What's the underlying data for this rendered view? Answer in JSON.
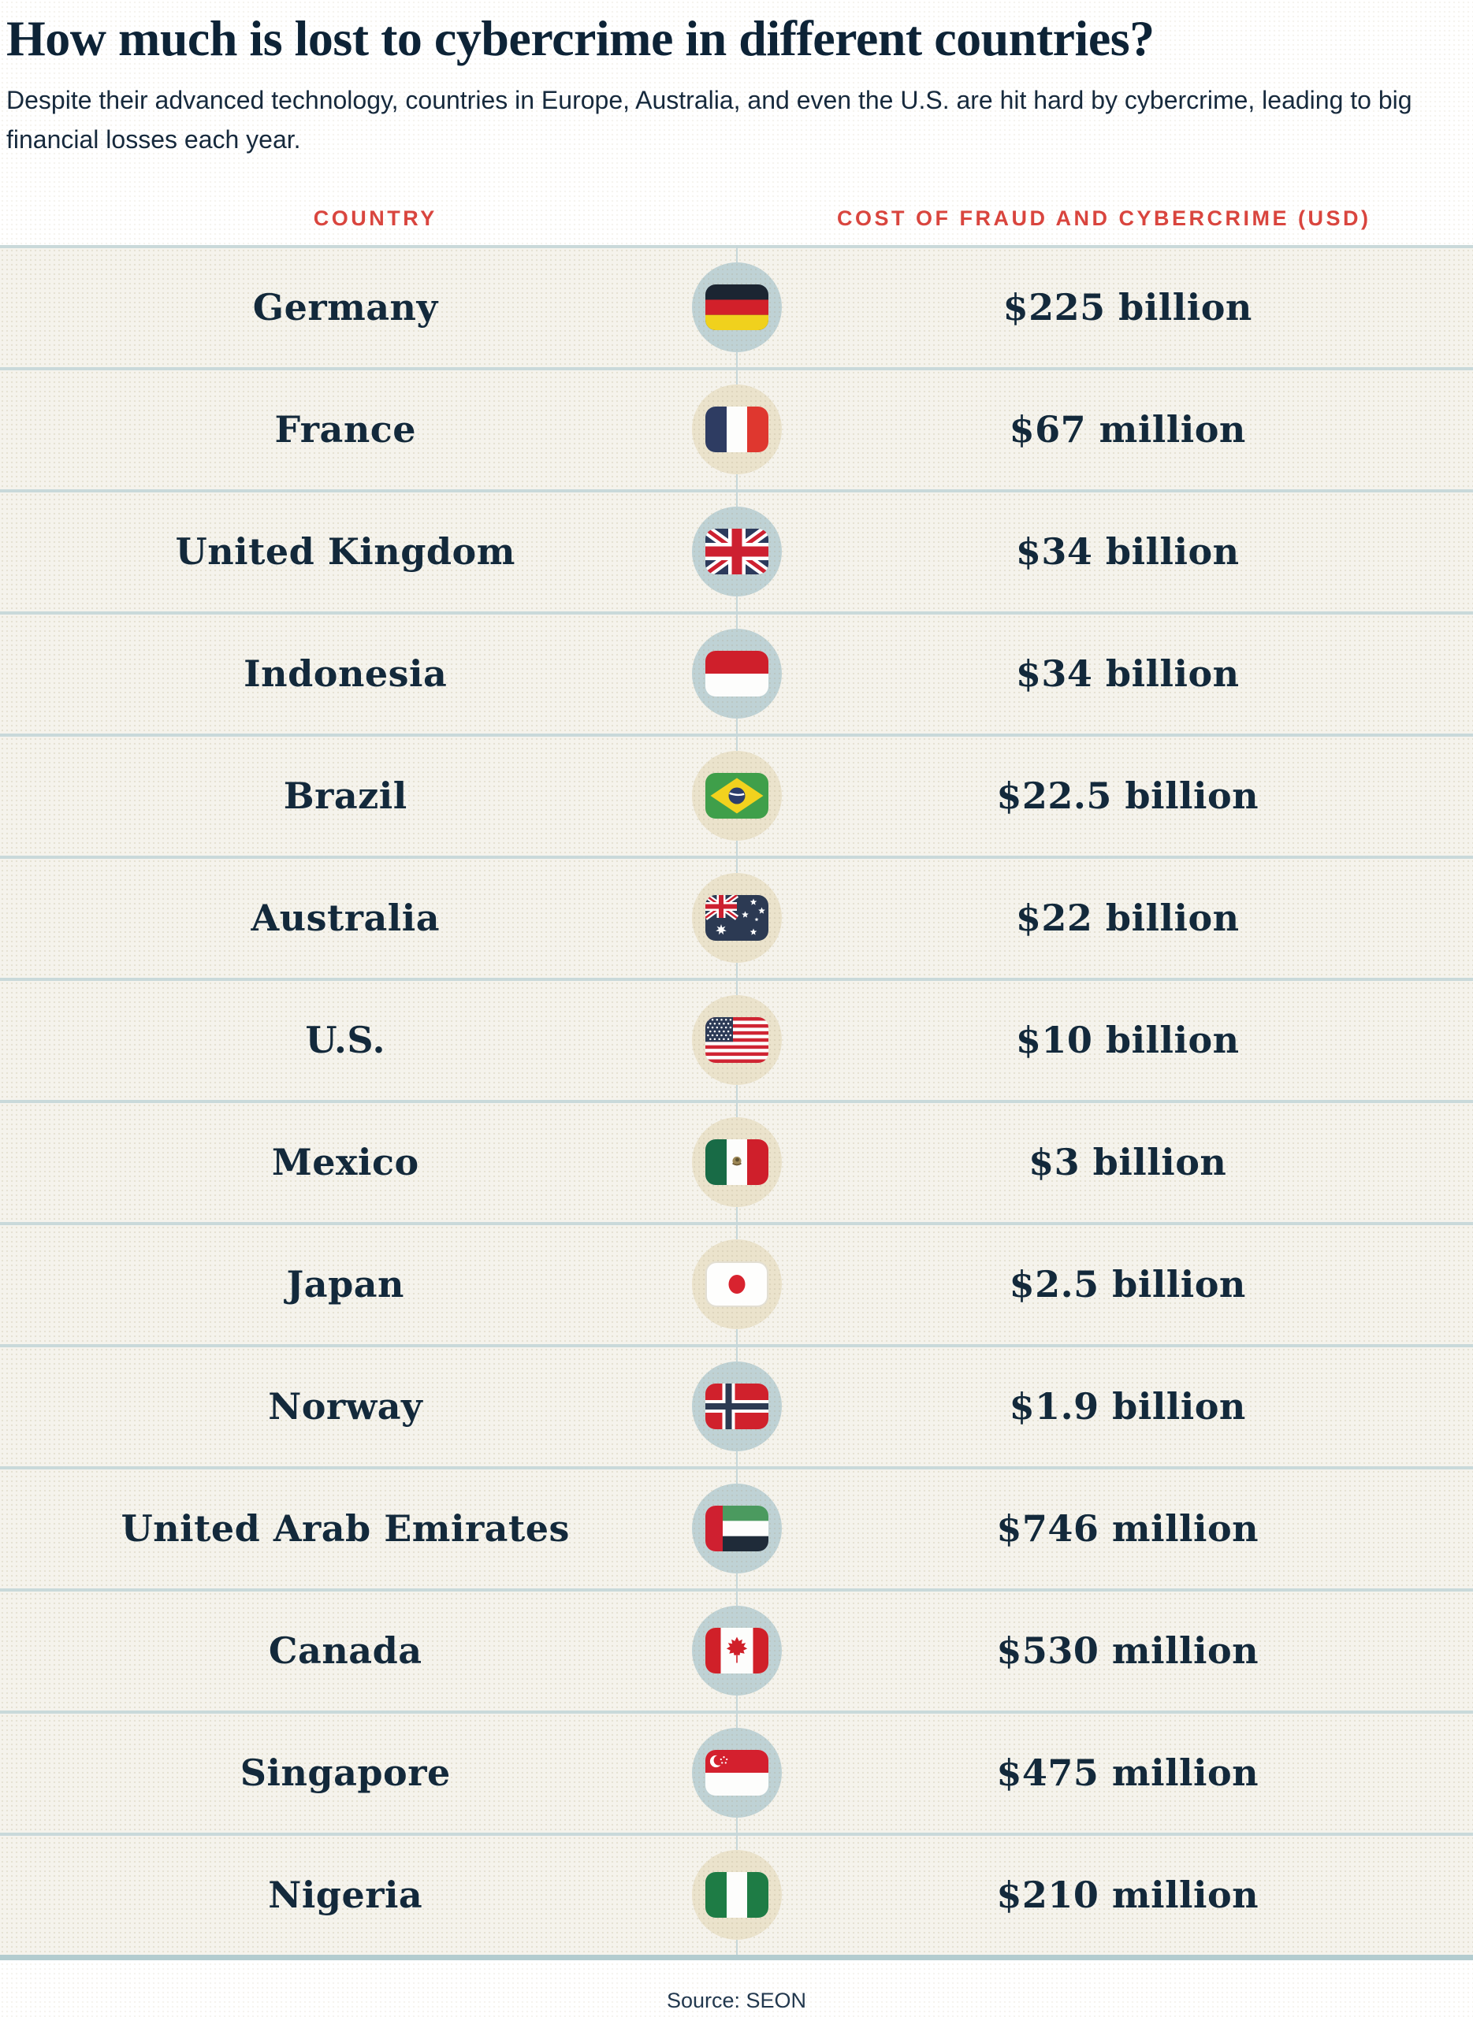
{
  "page": {
    "title": "How much is lost to cybercrime in different countries?",
    "subtitle": "Despite their advanced technology, countries in Europe, Australia, and even the U.S. are hit hard by cybercrime, leading to big financial losses each year.",
    "source": "Source: SEON"
  },
  "table": {
    "columns": {
      "country": "COUNTRY",
      "cost": "COST OF FRAUD AND CYBERCRIME (USD)"
    },
    "rows": [
      {
        "country": "Germany",
        "value": "$225 billion",
        "flag": "germany",
        "circle": "blue"
      },
      {
        "country": "France",
        "value": "$67 million",
        "flag": "france",
        "circle": "cream"
      },
      {
        "country": "United Kingdom",
        "value": "$34 billion",
        "flag": "uk",
        "circle": "blue"
      },
      {
        "country": "Indonesia",
        "value": "$34 billion",
        "flag": "indonesia",
        "circle": "blue"
      },
      {
        "country": "Brazil",
        "value": "$22.5 billion",
        "flag": "brazil",
        "circle": "cream"
      },
      {
        "country": "Australia",
        "value": "$22 billion",
        "flag": "australia",
        "circle": "cream"
      },
      {
        "country": "U.S.",
        "value": "$10 billion",
        "flag": "us",
        "circle": "cream"
      },
      {
        "country": "Mexico",
        "value": "$3 billion",
        "flag": "mexico",
        "circle": "cream"
      },
      {
        "country": "Japan",
        "value": "$2.5 billion",
        "flag": "japan",
        "circle": "cream"
      },
      {
        "country": "Norway",
        "value": "$1.9 billion",
        "flag": "norway",
        "circle": "blue"
      },
      {
        "country": "United Arab Emirates",
        "value": "$746 million",
        "flag": "uae",
        "circle": "blue"
      },
      {
        "country": "Canada",
        "value": "$530 million",
        "flag": "canada",
        "circle": "blue"
      },
      {
        "country": "Singapore",
        "value": "$475 million",
        "flag": "singapore",
        "circle": "blue"
      },
      {
        "country": "Nigeria",
        "value": "$210 million",
        "flag": "nigeria",
        "circle": "cream"
      }
    ]
  },
  "chart_data": {
    "type": "table",
    "title": "How much is lost to cybercrime in different countries?",
    "columns": [
      "COUNTRY",
      "COST OF FRAUD AND CYBERCRIME (USD)"
    ],
    "categories": [
      "Germany",
      "France",
      "United Kingdom",
      "Indonesia",
      "Brazil",
      "Australia",
      "U.S.",
      "Mexico",
      "Japan",
      "Norway",
      "United Arab Emirates",
      "Canada",
      "Singapore",
      "Nigeria"
    ],
    "values_display": [
      "$225 billion",
      "$67 million",
      "$34 billion",
      "$34 billion",
      "$22.5 billion",
      "$22 billion",
      "$10 billion",
      "$3 billion",
      "$2.5 billion",
      "$1.9 billion",
      "$746 million",
      "$530 million",
      "$475 million",
      "$210 million"
    ],
    "values_usd": [
      225000000000,
      67000000,
      34000000000,
      34000000000,
      22500000000,
      22000000000,
      10000000000,
      3000000000,
      2500000000,
      1900000000,
      746000000,
      530000000,
      475000000,
      210000000
    ],
    "source": "Source: SEON"
  },
  "colors": {
    "accent_red": "#d9453e",
    "navy_text": "#13293b",
    "row_bg": "#f5f3ec",
    "separator": "#c9d9da",
    "circle_blue": "#bfd2d5",
    "circle_cream": "#ebe3cc"
  }
}
